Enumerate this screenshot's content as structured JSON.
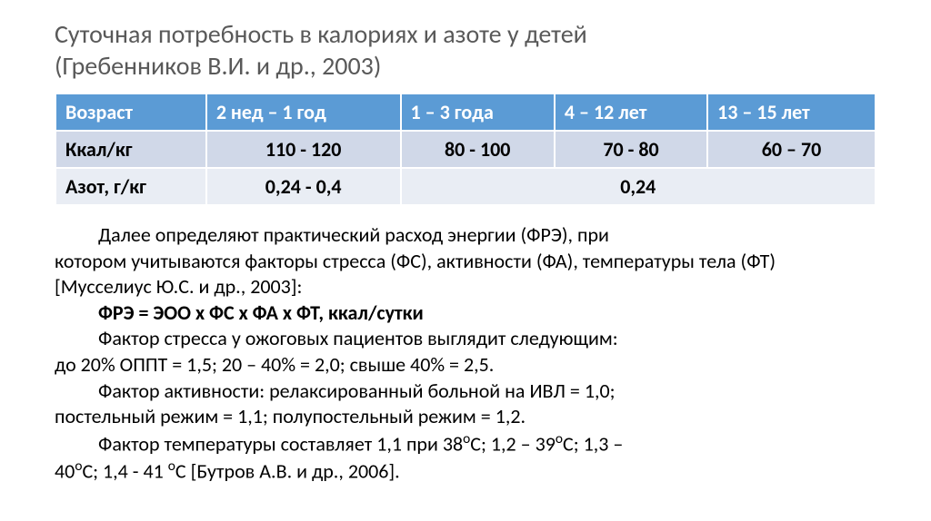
{
  "title_line1": "Суточная потребность в калориях и азоте у детей",
  "title_line2": "(Гребенников В.И. и др., 2003)",
  "table": {
    "headers": [
      "Возраст",
      "2 нед – 1 год",
      "1 – 3 года",
      "4 – 12 лет",
      "13 – 15 лет"
    ],
    "row_kcal_label": "Ккал/кг",
    "row_kcal": [
      "110 - 120",
      "80 - 100",
      "70 - 80",
      "60 – 70"
    ],
    "row_n_label": "Азот, г/кг",
    "row_n_first": "0,24 - 0,4",
    "row_n_merged": "0,24",
    "header_bg": "#5b9bd5",
    "row_bg_1": "#e9edf4",
    "row_bg_2": "#d0d8e8",
    "header_color": "#ffffff",
    "font_size_pt": 16
  },
  "paragraphs": {
    "p1a": "Далее определяют практический расход энергии (ФРЭ), при",
    "p1b": "котором учитываются факторы стресса (ФС), активности (ФА), температуры тела (ФТ) [Мусселиус Ю.С. и др., 2003]:",
    "formula": "ФРЭ = ЭОО x ФС x ФА x ФТ, ккал/сутки",
    "p2a": "Фактор стресса у ожоговых пациентов выглядит следующим:",
    "p2b": "до 20% ОППТ = 1,5; 20 – 40% = 2,0; свыше 40% = 2,5.",
    "p3a": "Фактор активности: релаксированный больной на ИВЛ = 1,0;",
    "p3b": "постельный режим = 1,1; полупостельный режим = 1,2.",
    "p4_pre": "Фактор температуры составляет 1,1 при 38",
    "p4_mid1": "С; 1,2 – 39",
    "p4_mid2": "С; 1,3 –",
    "p4b_pre": "40",
    "p4b_mid": "С; 1,4 - 41 ",
    "p4b_end": "С [Бутров А.В. и др., 2006].",
    "deg": "о"
  },
  "colors": {
    "title": "#595959",
    "text": "#000000",
    "background": "#ffffff"
  }
}
